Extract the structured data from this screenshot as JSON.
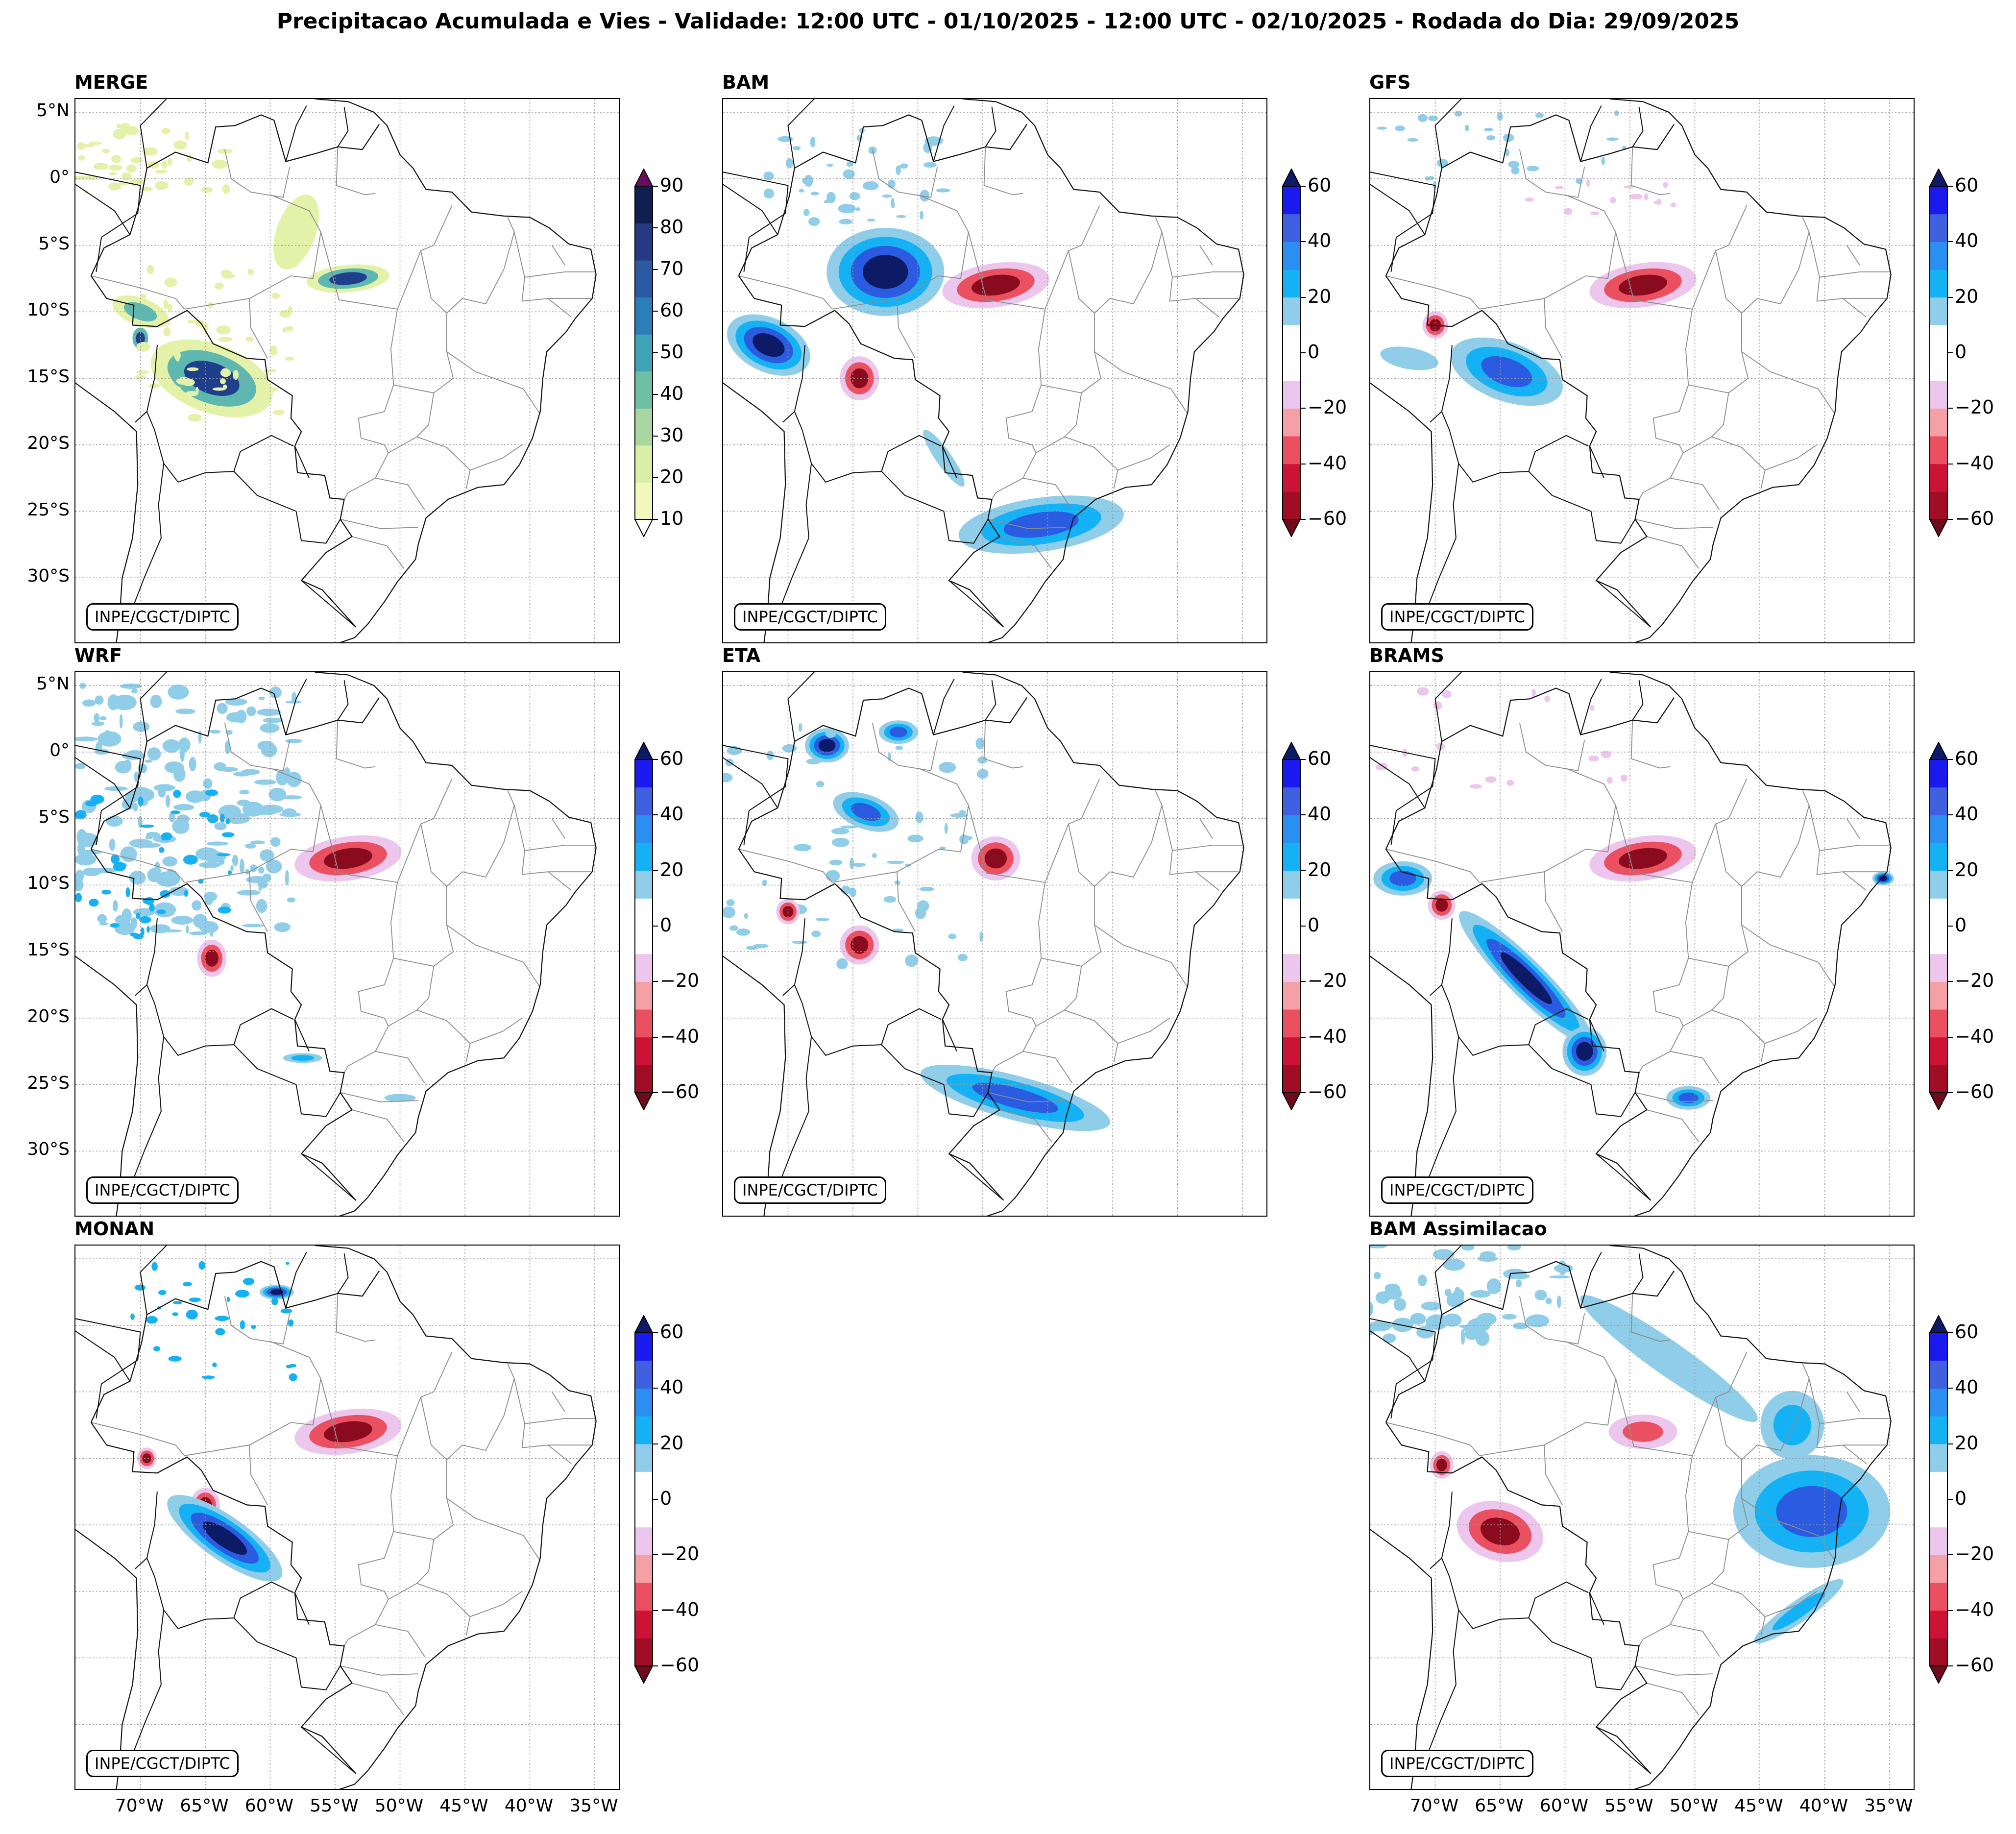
{
  "title": "Precipitacao Acumulada e Vies - Validade: 12:00 UTC - 01/10/2025 - 12:00 UTC - 02/10/2025 - Rodada do Dia: 29/09/2025",
  "credit": "INPE/CGCT/DIPTC",
  "lat_labels": [
    "5°N",
    "0°",
    "5°S",
    "10°S",
    "15°S",
    "20°S",
    "25°S",
    "30°S"
  ],
  "lon_labels": [
    "70°W",
    "65°W",
    "60°W",
    "55°W",
    "50°W",
    "45°W",
    "40°W",
    "35°W"
  ],
  "colorbars": {
    "precip": {
      "labels": [
        "90",
        "80",
        "70",
        "60",
        "50",
        "40",
        "30",
        "20",
        "10"
      ],
      "colors": [
        "#f2f7bc",
        "#d9efa5",
        "#a8d8a0",
        "#6ec0a5",
        "#3fa4b8",
        "#2b7fb8",
        "#2a5aa3",
        "#243a85",
        "#101f50"
      ],
      "over_color": "#6b0d5f"
    },
    "bias": {
      "labels": [
        "60",
        "40",
        "20",
        "0",
        "−20",
        "−40",
        "−60"
      ],
      "colors": [
        "#a10d24",
        "#cc1336",
        "#ea5060",
        "#f5a0a6",
        "#ecc6ec",
        "#ffffff",
        "#ffffff",
        "#8fcde8",
        "#14b2f5",
        "#2a8ff0",
        "#3f60e0",
        "#1a1aee"
      ],
      "under_color": "#6e0a1a",
      "over_color": "#0d1a66"
    }
  },
  "panels": [
    {
      "id": "merge",
      "title": "MERGE",
      "colorbar": "precip",
      "show_lat": true,
      "show_lon": false
    },
    {
      "id": "bam",
      "title": "BAM",
      "colorbar": "bias",
      "show_lat": false,
      "show_lon": false
    },
    {
      "id": "gfs",
      "title": "GFS",
      "colorbar": "bias",
      "show_lat": false,
      "show_lon": false
    },
    {
      "id": "wrf",
      "title": "WRF",
      "colorbar": "bias",
      "show_lat": true,
      "show_lon": false
    },
    {
      "id": "eta",
      "title": "ETA",
      "colorbar": "bias",
      "show_lat": false,
      "show_lon": false
    },
    {
      "id": "brams",
      "title": "BRAMS",
      "colorbar": "bias",
      "show_lat": false,
      "show_lon": false
    },
    {
      "id": "monan",
      "title": "MONAN",
      "colorbar": "bias",
      "show_lat": false,
      "show_lon": true
    },
    {
      "id": "bam-assim",
      "title": "BAM Assimilacao",
      "colorbar": "bias",
      "show_lat": false,
      "show_lon": true
    }
  ],
  "colors": {
    "rain_light": "#e4f1a9",
    "rain_mid": "#5fb8b0",
    "rain_heavy": "#1f3f8c",
    "wet_light": "#8fcde8",
    "wet_mid": "#14b2f5",
    "wet_strong": "#2a5be0",
    "wet_max": "#0d1a66",
    "dry_light": "#ecc6ec",
    "dry_mid": "#ea5060",
    "dry_max": "#8a0a1e"
  }
}
